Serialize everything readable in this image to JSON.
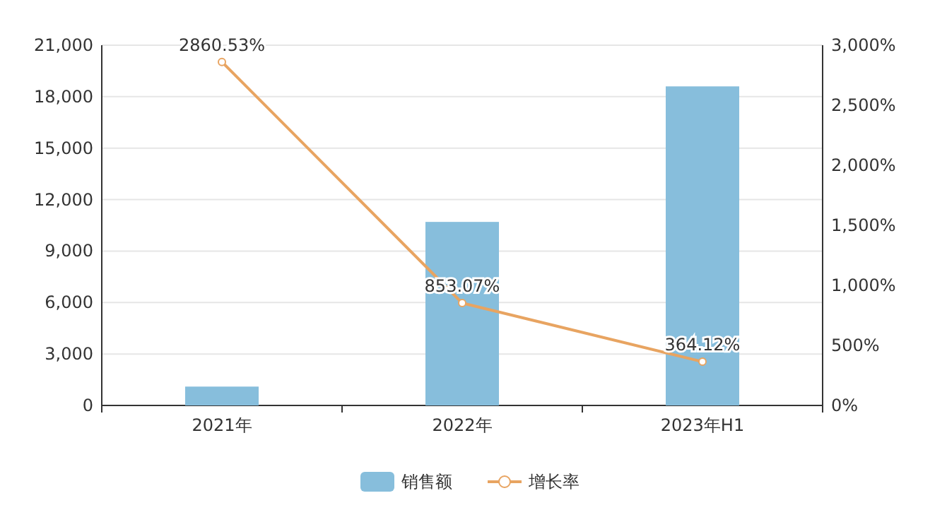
{
  "chart_data": {
    "type": "bar",
    "categories": [
      "2021年",
      "2022年",
      "2023年H1"
    ],
    "series": [
      {
        "name": "销售额",
        "color": "#87bedc",
        "values": [
          1100,
          10700,
          18600
        ]
      },
      {
        "name": "增长率",
        "type": "line",
        "axis": "y2",
        "color": "#e8a461",
        "marker": "circle",
        "values": [
          2860.53,
          853.07,
          364.12
        ],
        "value_labels": [
          "2860.53%",
          "853.07%",
          "364.12%"
        ]
      }
    ],
    "ylim": [
      0,
      21000
    ],
    "yticks": [
      0,
      {
        "value": 3000,
        "label": "3,000"
      },
      {
        "value": 6000,
        "label": "6,000"
      },
      {
        "value": 9000,
        "label": "9,000"
      },
      {
        "value": 12000,
        "label": "12,000"
      },
      {
        "value": 15000,
        "label": "15,000"
      },
      {
        "value": 18000,
        "label": "18,000"
      },
      {
        "value": 21000,
        "label": "21,000"
      }
    ],
    "y2lim": [
      0,
      3000
    ],
    "y2ticks": [
      {
        "value": 0,
        "label": "0%"
      },
      {
        "value": 500,
        "label": "500%"
      },
      {
        "value": 1000,
        "label": "1,000%"
      },
      {
        "value": 1500,
        "label": "1,500%"
      },
      {
        "value": 2000,
        "label": "2,000%"
      },
      {
        "value": 2500,
        "label": "2,500%"
      },
      {
        "value": 3000,
        "label": "3,000%"
      }
    ],
    "grid": "y",
    "legend": "bottom"
  }
}
